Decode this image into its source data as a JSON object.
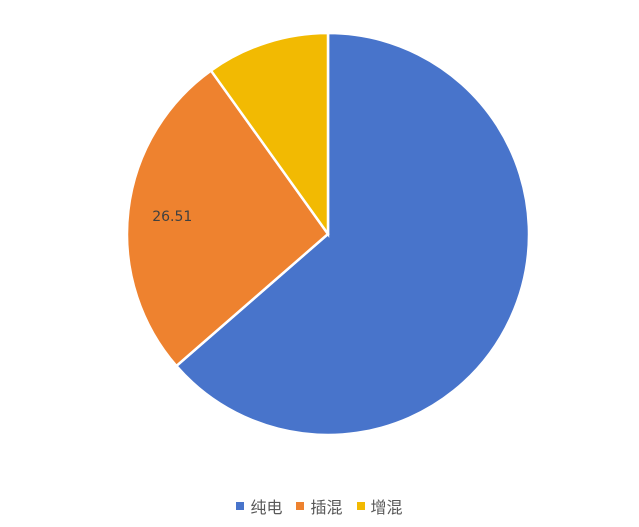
{
  "chart_data": {
    "type": "pie",
    "title": "",
    "start_angle_deg": 0,
    "direction": "clockwise",
    "slices": [
      {
        "label": "纯电",
        "value": 63.6,
        "color": "#4874CB",
        "show_label": false
      },
      {
        "label": "插混",
        "value": 26.51,
        "color": "#EE822F",
        "show_label": true,
        "data_label": "26.51"
      },
      {
        "label": "增混",
        "value": 9.89,
        "color": "#F2BA02",
        "show_label": false
      }
    ],
    "legend": {
      "placement": "bottom",
      "entries": [
        "纯电",
        "插混",
        "增混"
      ]
    },
    "slice_border_color": "#FFFFFF",
    "data_label_color": "#404040"
  }
}
